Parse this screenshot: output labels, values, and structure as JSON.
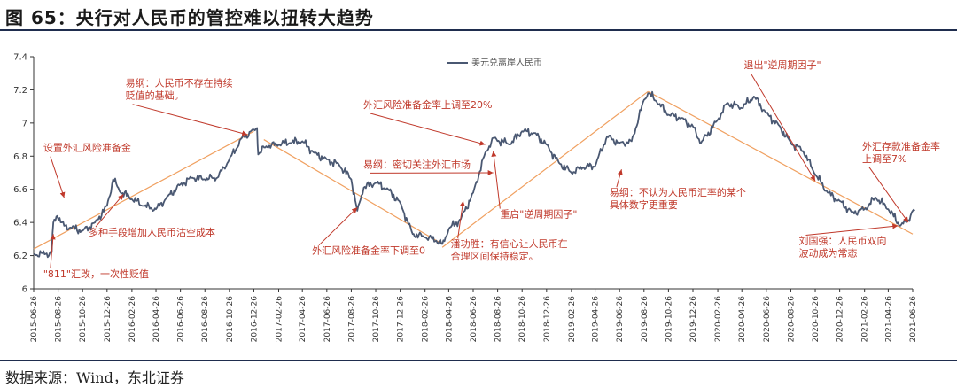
{
  "title": "图 65：央行对人民币的管控难以扭转大趋势",
  "source": "数据来源：Wind，东北证券",
  "chart_data": {
    "type": "line",
    "series": [
      {
        "name": "美元兑离岸人民币",
        "color": "#4a5872",
        "points": [
          [
            "2015-06-26",
            6.21
          ],
          [
            "2015-07-26",
            6.21
          ],
          [
            "2015-08-10",
            6.22
          ],
          [
            "2015-08-14",
            6.4
          ],
          [
            "2015-08-24",
            6.44
          ],
          [
            "2015-09-10",
            6.38
          ],
          [
            "2015-09-26",
            6.37
          ],
          [
            "2015-10-26",
            6.35
          ],
          [
            "2015-11-26",
            6.4
          ],
          [
            "2015-12-26",
            6.5
          ],
          [
            "2016-01-10",
            6.66
          ],
          [
            "2016-01-26",
            6.59
          ],
          [
            "2016-02-26",
            6.54
          ],
          [
            "2016-03-26",
            6.5
          ],
          [
            "2016-04-26",
            6.48
          ],
          [
            "2016-05-26",
            6.56
          ],
          [
            "2016-06-26",
            6.63
          ],
          [
            "2016-07-26",
            6.67
          ],
          [
            "2016-08-26",
            6.66
          ],
          [
            "2016-09-26",
            6.67
          ],
          [
            "2016-10-26",
            6.78
          ],
          [
            "2016-11-26",
            6.91
          ],
          [
            "2016-12-26",
            6.96
          ],
          [
            "2017-01-03",
            6.97
          ],
          [
            "2017-01-06",
            6.81
          ],
          [
            "2017-01-26",
            6.86
          ],
          [
            "2017-02-26",
            6.87
          ],
          [
            "2017-03-26",
            6.88
          ],
          [
            "2017-04-26",
            6.89
          ],
          [
            "2017-05-26",
            6.82
          ],
          [
            "2017-06-26",
            6.78
          ],
          [
            "2017-07-26",
            6.75
          ],
          [
            "2017-08-26",
            6.66
          ],
          [
            "2017-09-10",
            6.47
          ],
          [
            "2017-09-26",
            6.61
          ],
          [
            "2017-10-26",
            6.64
          ],
          [
            "2017-11-26",
            6.6
          ],
          [
            "2017-12-26",
            6.52
          ],
          [
            "2018-01-26",
            6.33
          ],
          [
            "2018-02-26",
            6.31
          ],
          [
            "2018-03-26",
            6.29
          ],
          [
            "2018-04-10",
            6.27
          ],
          [
            "2018-04-26",
            6.36
          ],
          [
            "2018-05-26",
            6.42
          ],
          [
            "2018-06-26",
            6.58
          ],
          [
            "2018-07-26",
            6.82
          ],
          [
            "2018-08-15",
            6.91
          ],
          [
            "2018-09-26",
            6.87
          ],
          [
            "2018-10-26",
            6.95
          ],
          [
            "2018-11-26",
            6.94
          ],
          [
            "2018-12-26",
            6.87
          ],
          [
            "2019-01-26",
            6.76
          ],
          [
            "2019-02-26",
            6.7
          ],
          [
            "2019-03-26",
            6.73
          ],
          [
            "2019-04-26",
            6.74
          ],
          [
            "2019-05-26",
            6.92
          ],
          [
            "2019-06-26",
            6.88
          ],
          [
            "2019-07-26",
            6.89
          ],
          [
            "2019-08-26",
            7.14
          ],
          [
            "2019-09-05",
            7.18
          ],
          [
            "2019-09-26",
            7.13
          ],
          [
            "2019-10-26",
            7.05
          ],
          [
            "2019-11-26",
            7.03
          ],
          [
            "2019-12-26",
            6.98
          ],
          [
            "2020-01-15",
            6.88
          ],
          [
            "2020-02-26",
            7.02
          ],
          [
            "2020-03-20",
            7.12
          ],
          [
            "2020-04-26",
            7.09
          ],
          [
            "2020-05-26",
            7.16
          ],
          [
            "2020-06-26",
            7.06
          ],
          [
            "2020-07-26",
            6.99
          ],
          [
            "2020-08-26",
            6.88
          ],
          [
            "2020-09-26",
            6.83
          ],
          [
            "2020-10-26",
            6.69
          ],
          [
            "2020-11-26",
            6.58
          ],
          [
            "2020-12-26",
            6.53
          ],
          [
            "2021-01-26",
            6.46
          ],
          [
            "2021-02-26",
            6.48
          ],
          [
            "2021-03-26",
            6.55
          ],
          [
            "2021-04-26",
            6.48
          ],
          [
            "2021-05-26",
            6.38
          ],
          [
            "2021-06-10",
            6.4
          ],
          [
            "2021-06-26",
            6.47
          ],
          [
            "2021-07-01",
            6.47
          ]
        ]
      }
    ],
    "trend_lines": [
      {
        "color": "#f0a060",
        "from": [
          "2015-06-26",
          6.24
        ],
        "to": [
          "2016-12-26",
          6.95
        ]
      },
      {
        "color": "#f0a060",
        "from": [
          "2017-01-20",
          6.9
        ],
        "to": [
          "2018-04-10",
          6.27
        ]
      },
      {
        "color": "#f0a060",
        "from": [
          "2018-04-10",
          6.25
        ],
        "to": [
          "2019-09-05",
          7.19
        ]
      },
      {
        "color": "#f0a060",
        "from": [
          "2019-09-05",
          7.19
        ],
        "to": [
          "2021-06-26",
          6.33
        ]
      }
    ],
    "ylim": [
      6.0,
      7.4
    ],
    "yticks": [
      "6",
      "6.2",
      "6.4",
      "6.6",
      "6.8",
      "7",
      "7.2",
      "7.4"
    ],
    "xticks": [
      "2015-06-26",
      "2015-08-26",
      "2015-10-26",
      "2015-12-26",
      "2016-02-26",
      "2016-04-26",
      "2016-06-26",
      "2016-08-26",
      "2016-10-26",
      "2016-12-26",
      "2017-02-26",
      "2017-04-26",
      "2017-06-26",
      "2017-08-26",
      "2017-10-26",
      "2017-12-26",
      "2018-02-26",
      "2018-04-26",
      "2018-06-26",
      "2018-08-26",
      "2018-10-26",
      "2018-12-26",
      "2019-02-26",
      "2019-04-26",
      "2019-06-26",
      "2019-08-26",
      "2019-10-26",
      "2019-12-26",
      "2020-02-26",
      "2020-04-26",
      "2020-06-26",
      "2020-08-26",
      "2020-10-26",
      "2020-12-26",
      "2021-02-26",
      "2021-04-26",
      "2021-06-26"
    ],
    "legend_position": "top-center",
    "grid": false,
    "annotations": [
      {
        "lines": [
          "设置外汇风险准备金"
        ],
        "date": "2015-07-20",
        "value": 6.83,
        "target": [
          "2015-09-10",
          6.55
        ]
      },
      {
        "lines": [
          "多种手段增加人民币沽空成本"
        ],
        "date": "2015-11-10",
        "value": 6.32,
        "target": [
          "2016-02-05",
          6.57
        ]
      },
      {
        "lines": [
          "\"811\"汇改，一次性贬值"
        ],
        "date": "2015-07-20",
        "value": 6.07,
        "target": [
          "2015-08-14",
          6.33
        ]
      },
      {
        "lines": [
          "易纲：人民币不存在持续",
          "贬值的基础。"
        ],
        "date": "2016-02-10",
        "value": 7.22,
        "target": [
          "2016-12-10",
          6.93
        ]
      },
      {
        "lines": [
          "外汇风险准备金率下调至0"
        ],
        "date": "2017-05-20",
        "value": 6.21,
        "target": [
          "2017-09-10",
          6.49
        ]
      },
      {
        "lines": [
          "易纲：密切关注外汇市场"
        ],
        "date": "2017-09-25",
        "value": 6.73,
        "target": [
          "2018-08-15",
          6.7
        ]
      },
      {
        "lines": [
          "外汇风险准备金率上调至20%"
        ],
        "date": "2017-09-25",
        "value": 7.09,
        "target": [
          "2018-07-26",
          6.87
        ]
      },
      {
        "lines": [
          "重启\"逆周期因子\""
        ],
        "date": "2018-09-01",
        "value": 6.43,
        "target": [
          "2018-08-15",
          6.83
        ]
      },
      {
        "lines": [
          "潘功胜：有信心让人民币在",
          "合理区间保持稳定。"
        ],
        "date": "2018-05-01",
        "value": 6.25,
        "target": [
          "2018-06-01",
          6.53
        ]
      },
      {
        "lines": [
          "易纲：不认为人民币汇率的某个",
          "具体数字更重要"
        ],
        "date": "2019-06-01",
        "value": 6.56,
        "target": [
          "2019-07-01",
          6.72
        ]
      },
      {
        "lines": [
          "退出\"逆周期因子\""
        ],
        "date": "2020-05-01",
        "value": 7.33,
        "target": [
          "2020-10-26",
          6.65
        ]
      },
      {
        "lines": [
          "刘国强：人民币双向",
          "波动成为常态"
        ],
        "date": "2020-09-15",
        "value": 6.27,
        "target": [
          "2021-05-20",
          6.38
        ]
      },
      {
        "lines": [
          "外汇存款准备金率",
          "上调至7%"
        ],
        "date": "2021-02-20",
        "value": 6.84,
        "target": [
          "2021-06-15",
          6.4
        ]
      }
    ]
  }
}
